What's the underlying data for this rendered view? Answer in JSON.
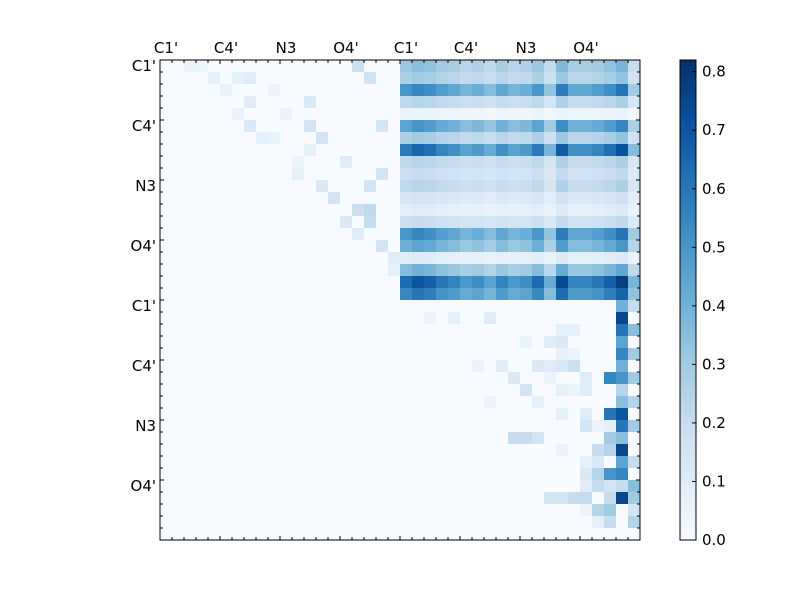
{
  "chart_data": {
    "type": "heatmap",
    "title": "",
    "xlabel": "",
    "ylabel": "",
    "x_tick_labels": [
      "C1'",
      "C4'",
      "N3",
      "O4'",
      "C1'",
      "C4'",
      "N3",
      "O4'"
    ],
    "y_tick_labels": [
      "C1'",
      "C4'",
      "N3",
      "O4'",
      "C1'",
      "C4'",
      "N3",
      "O4'"
    ],
    "colorbar_tick_labels": [
      "0.0",
      "0.1",
      "0.2",
      "0.3",
      "0.4",
      "0.5",
      "0.6",
      "0.7",
      "0.8"
    ],
    "colorbar_range": [
      0.0,
      0.82
    ],
    "colormap": [
      "#f7fbff",
      "#deebf7",
      "#c6dbef",
      "#9ecae1",
      "#6baed6",
      "#4292c6",
      "#2171b5",
      "#08519c",
      "#08306b"
    ],
    "grid_size": 40,
    "matrix_description": "upper-triangular; rows 0-19 x cols 20-39 dense block, rows 20-39 near diagonal sparse",
    "blocks": {
      "block_a_rows": [
        0,
        19
      ],
      "block_a_cols": [
        20,
        39
      ],
      "row_profile_a": [
        0.35,
        0.3,
        0.55,
        0.25,
        0.05,
        0.5,
        0.3,
        0.65,
        0.25,
        0.2,
        0.25,
        0.15,
        0.1,
        0.2,
        0.55,
        0.45,
        0.1,
        0.4,
        0.7,
        0.6
      ],
      "col_profile_a": [
        0.9,
        1.0,
        0.95,
        0.85,
        0.8,
        0.7,
        0.75,
        0.65,
        0.8,
        0.7,
        0.75,
        0.9,
        0.6,
        1.05,
        0.8,
        0.8,
        0.85,
        0.95,
        1.1,
        0.55
      ],
      "sparse_cells": [
        [
          0,
          2,
          0.05
        ],
        [
          0,
          3,
          0.04
        ],
        [
          1,
          4,
          0.07
        ],
        [
          1,
          6,
          0.08
        ],
        [
          1,
          7,
          0.1
        ],
        [
          2,
          5,
          0.06
        ],
        [
          3,
          7,
          0.1
        ],
        [
          3,
          12,
          0.12
        ],
        [
          4,
          6,
          0.06
        ],
        [
          4,
          10,
          0.06
        ],
        [
          5,
          7,
          0.12
        ],
        [
          5,
          12,
          0.15
        ],
        [
          6,
          8,
          0.08
        ],
        [
          6,
          9,
          0.06
        ],
        [
          6,
          13,
          0.15
        ],
        [
          7,
          12,
          0.08
        ],
        [
          8,
          15,
          0.1
        ],
        [
          9,
          11,
          0.08
        ],
        [
          10,
          13,
          0.12
        ],
        [
          11,
          14,
          0.15
        ],
        [
          12,
          16,
          0.18
        ],
        [
          13,
          15,
          0.12
        ],
        [
          13,
          17,
          0.2
        ],
        [
          14,
          16,
          0.1
        ],
        [
          15,
          18,
          0.15
        ],
        [
          16,
          19,
          0.1
        ],
        [
          17,
          19,
          0.08
        ],
        [
          2,
          9,
          0.05
        ],
        [
          8,
          11,
          0.05
        ],
        [
          10,
          17,
          0.15
        ],
        [
          0,
          16,
          0.18
        ],
        [
          1,
          17,
          0.16
        ],
        [
          5,
          18,
          0.14
        ],
        [
          9,
          18,
          0.15
        ],
        [
          12,
          17,
          0.22
        ]
      ],
      "block_b_cells": [
        [
          20,
          38,
          0.4
        ],
        [
          21,
          38,
          0.75
        ],
        [
          22,
          38,
          0.6
        ],
        [
          23,
          38,
          0.45
        ],
        [
          24,
          38,
          0.55
        ],
        [
          25,
          38,
          0.4
        ],
        [
          26,
          38,
          0.5
        ],
        [
          27,
          38,
          0.25
        ],
        [
          28,
          38,
          0.35
        ],
        [
          29,
          38,
          0.7
        ],
        [
          30,
          38,
          0.6
        ],
        [
          31,
          38,
          0.35
        ],
        [
          32,
          38,
          0.75
        ],
        [
          33,
          38,
          0.45
        ],
        [
          34,
          38,
          0.55
        ],
        [
          35,
          38,
          0.2
        ],
        [
          36,
          38,
          0.75
        ],
        [
          20,
          39,
          0.2
        ],
        [
          22,
          39,
          0.35
        ],
        [
          24,
          39,
          0.3
        ],
        [
          26,
          39,
          0.3
        ],
        [
          28,
          39,
          0.25
        ],
        [
          30,
          39,
          0.3
        ],
        [
          33,
          39,
          0.2
        ],
        [
          35,
          39,
          0.35
        ],
        [
          36,
          39,
          0.3
        ],
        [
          21,
          22,
          0.05
        ],
        [
          21,
          24,
          0.08
        ],
        [
          21,
          27,
          0.1
        ],
        [
          22,
          33,
          0.08
        ],
        [
          22,
          34,
          0.07
        ],
        [
          23,
          30,
          0.06
        ],
        [
          23,
          32,
          0.1
        ],
        [
          23,
          33,
          0.12
        ],
        [
          24,
          33,
          0.08
        ],
        [
          24,
          34,
          0.05
        ],
        [
          25,
          26,
          0.06
        ],
        [
          25,
          28,
          0.1
        ],
        [
          25,
          31,
          0.12
        ],
        [
          25,
          32,
          0.1
        ],
        [
          25,
          33,
          0.12
        ],
        [
          25,
          34,
          0.18
        ],
        [
          26,
          29,
          0.12
        ],
        [
          26,
          32,
          0.05
        ],
        [
          26,
          35,
          0.1
        ],
        [
          26,
          37,
          0.55
        ],
        [
          27,
          30,
          0.15
        ],
        [
          27,
          33,
          0.08
        ],
        [
          27,
          34,
          0.05
        ],
        [
          27,
          35,
          0.1
        ],
        [
          28,
          27,
          0.05
        ],
        [
          28,
          31,
          0.08
        ],
        [
          29,
          33,
          0.08
        ],
        [
          29,
          35,
          0.1
        ],
        [
          29,
          37,
          0.6
        ],
        [
          30,
          35,
          0.15
        ],
        [
          30,
          36,
          0.05
        ],
        [
          31,
          29,
          0.2
        ],
        [
          31,
          30,
          0.2
        ],
        [
          31,
          31,
          0.15
        ],
        [
          31,
          37,
          0.3
        ],
        [
          32,
          33,
          0.06
        ],
        [
          32,
          36,
          0.2
        ],
        [
          32,
          37,
          0.25
        ],
        [
          33,
          35,
          0.08
        ],
        [
          33,
          36,
          0.12
        ],
        [
          34,
          35,
          0.12
        ],
        [
          34,
          37,
          0.5
        ],
        [
          35,
          35,
          0.1
        ],
        [
          35,
          36,
          0.2
        ],
        [
          35,
          37,
          0.15
        ],
        [
          36,
          32,
          0.15
        ],
        [
          36,
          33,
          0.15
        ],
        [
          36,
          34,
          0.2
        ],
        [
          36,
          35,
          0.2
        ],
        [
          36,
          37,
          0.2
        ],
        [
          37,
          35,
          0.05
        ],
        [
          37,
          36,
          0.25
        ],
        [
          37,
          37,
          0.3
        ],
        [
          37,
          39,
          0.15
        ],
        [
          38,
          36,
          0.08
        ],
        [
          38,
          37,
          0.2
        ],
        [
          38,
          39,
          0.25
        ],
        [
          34,
          36,
          0.25
        ],
        [
          30,
          37,
          0.08
        ]
      ]
    }
  }
}
